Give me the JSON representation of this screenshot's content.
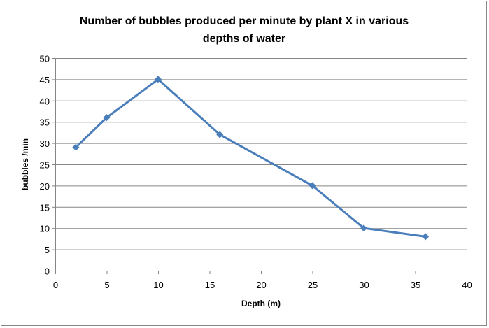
{
  "chart_data": {
    "type": "line",
    "title": "Number of bubbles produced per minute by plant X in various depths of water",
    "title_lines": [
      "Number of bubbles produced per minute by plant X in various",
      "depths of water"
    ],
    "xlabel": "Depth (m)",
    "ylabel": "bubbles /min",
    "xlim": [
      0,
      40
    ],
    "ylim": [
      0,
      50
    ],
    "xticks": [
      0,
      5,
      10,
      15,
      20,
      25,
      30,
      35,
      40
    ],
    "yticks": [
      0,
      5,
      10,
      15,
      20,
      25,
      30,
      35,
      40,
      45,
      50
    ],
    "grid": "horizontal",
    "legend": "none",
    "series": [
      {
        "color": "#4a7ebb",
        "marker": "diamond",
        "x": [
          2,
          5,
          10,
          16,
          25,
          30,
          36
        ],
        "y": [
          29,
          36,
          45,
          32,
          20,
          10,
          8
        ]
      }
    ]
  }
}
